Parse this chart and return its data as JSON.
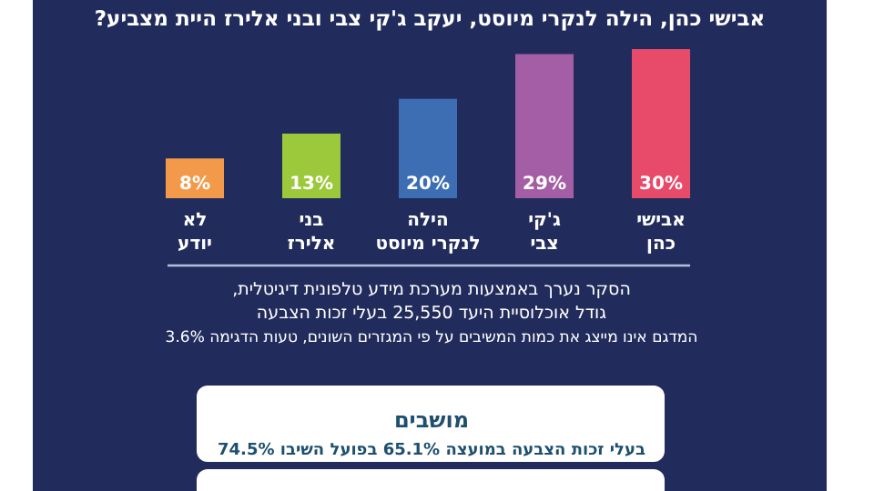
{
  "chart_data": {
    "type": "bar",
    "title": "אבישי כהן, הילה לנקרי מיוסט, יעקב ג'קי צבי ובני אלירז היית מצביע?",
    "categories": [
      "לא יודע",
      "בני אלירז",
      "הילה לנקרי מיוסט",
      "ג'קי צבי",
      "אבישי כהן"
    ],
    "values": [
      8,
      13,
      20,
      29,
      30
    ],
    "colors": [
      "#f39a4a",
      "#9cc93c",
      "#3d6db3",
      "#a45ea6",
      "#e84a6a"
    ],
    "value_labels": [
      "8%",
      "13%",
      "20%",
      "29%",
      "30%"
    ],
    "annotations": [
      "הסקר נערך באמצעות מערכת מידע טלפונית דיגיטלית,",
      "גודל אוכלוסיית היעד 25,550 בעלי זכות הצבעה",
      "המדגם אינו מייצג את כמות המשיבים על פי המגזרים השונים, טעות הדגימה 3.6%",
      "מושבים",
      "בעלי זכות הצבעה במועצה 65.1% בפועל השיבו 74.5%"
    ]
  }
}
